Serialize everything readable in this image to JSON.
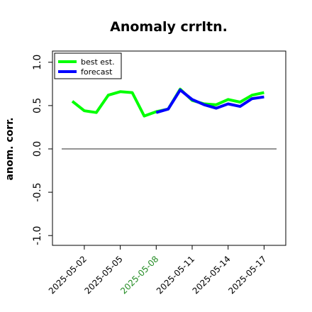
{
  "chart_data": {
    "type": "line",
    "title": "Anomaly crrltn.",
    "xlabel": "",
    "ylabel": "anom. corr.",
    "ylim": [
      -1.0,
      1.0
    ],
    "yticks": [
      "-1.0",
      "-0.5",
      "0.0",
      "0.5",
      "1.0"
    ],
    "x": [
      "2025-05-01",
      "2025-05-02",
      "2025-05-03",
      "2025-05-04",
      "2025-05-05",
      "2025-05-06",
      "2025-05-07",
      "2025-05-08",
      "2025-05-09",
      "2025-05-10",
      "2025-05-11",
      "2025-05-12",
      "2025-05-13",
      "2025-05-14",
      "2025-05-15",
      "2025-05-16",
      "2025-05-17"
    ],
    "xticks": [
      "2025-05-02",
      "2025-05-05",
      "2025-05-08",
      "2025-05-11",
      "2025-05-14",
      "2025-05-17"
    ],
    "xtick_highlight": "2025-05-08",
    "xtick_highlight_color": "#228b22",
    "reference_line": 0.0,
    "grid": false,
    "legend_position": "top-left",
    "series": [
      {
        "name": "best est.",
        "color": "#00ff00",
        "values": [
          0.55,
          0.44,
          0.42,
          0.62,
          0.66,
          0.65,
          0.38,
          0.43,
          0.46,
          0.69,
          0.56,
          0.52,
          0.51,
          0.57,
          0.54,
          0.62,
          0.65
        ]
      },
      {
        "name": "forecast",
        "color": "#0000ff",
        "values": [
          null,
          null,
          null,
          null,
          null,
          null,
          null,
          0.42,
          0.46,
          0.68,
          0.57,
          0.51,
          0.47,
          0.52,
          0.49,
          0.58,
          0.6
        ]
      }
    ]
  }
}
